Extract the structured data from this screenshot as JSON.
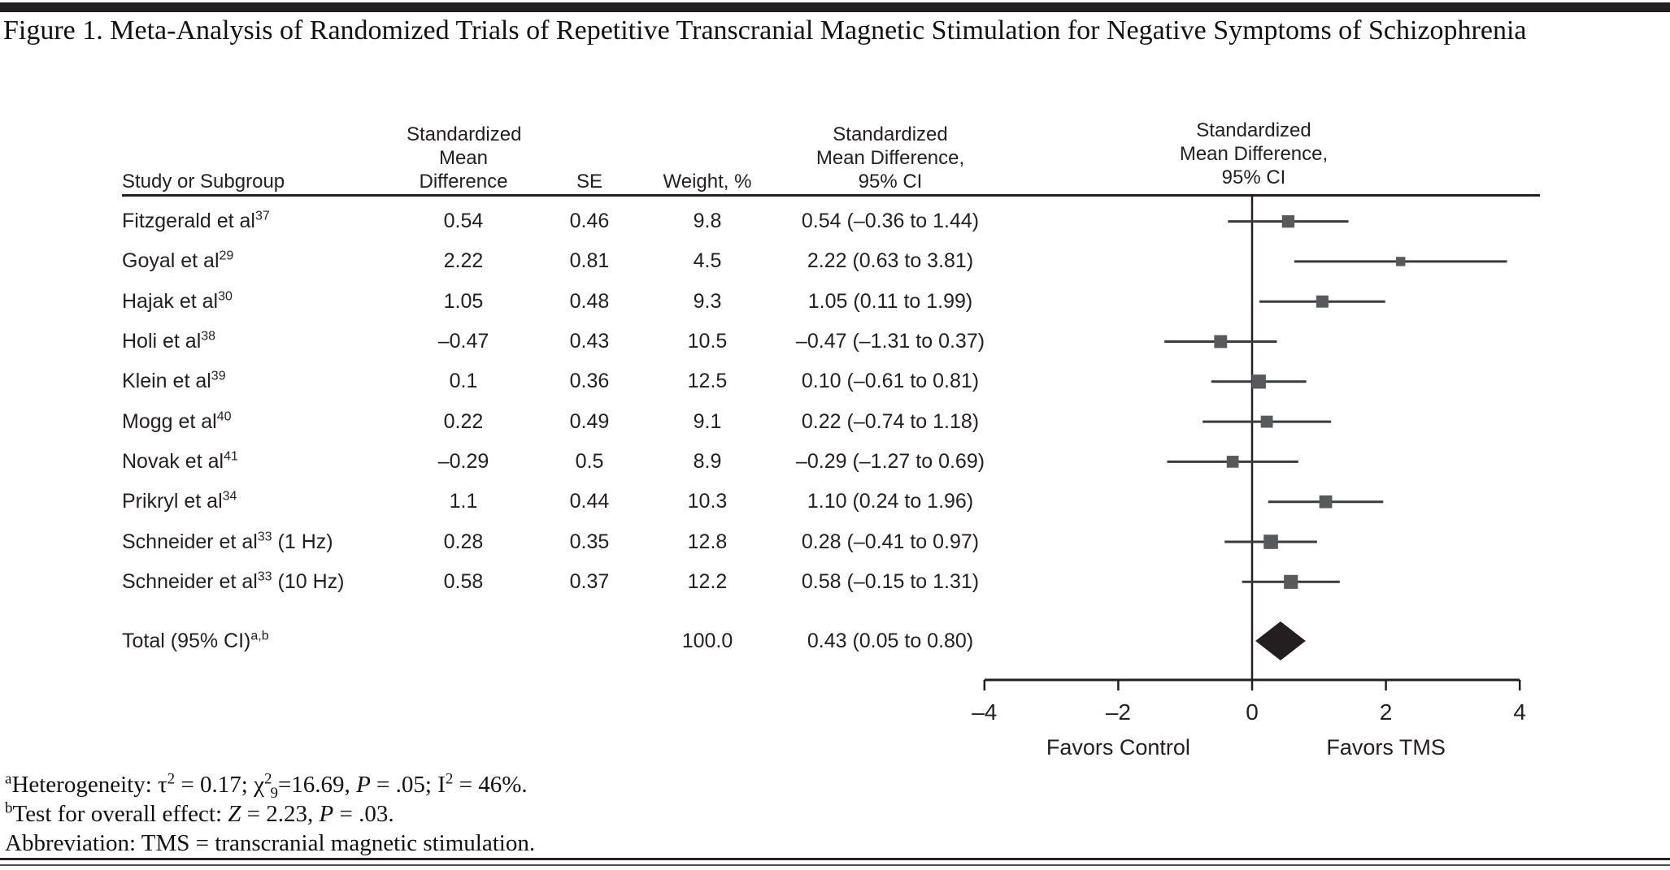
{
  "figure": {
    "title": "Figure 1. Meta-Analysis of Randomized Trials of Repetitive Transcranial Magnetic Stimulation for Negative Symptoms of Schizophrenia"
  },
  "table": {
    "headers": {
      "study": "Study or Subgroup",
      "smd": [
        "Standardized",
        "Mean",
        "Difference"
      ],
      "se": "SE",
      "weight": "Weight, %",
      "ci": [
        "Standardized",
        "Mean Difference,",
        "95% CI"
      ],
      "plot": [
        "Standardized",
        "Mean Difference,",
        "95% CI"
      ]
    },
    "rows": [
      {
        "study": "Fitzgerald et al",
        "ref": "37",
        "suffix": "",
        "smd": "0.54",
        "se": "0.46",
        "weight": "9.8",
        "ci": "0.54 (–0.36 to 1.44)"
      },
      {
        "study": "Goyal et al",
        "ref": "29",
        "suffix": "",
        "smd": "2.22",
        "se": "0.81",
        "weight": "4.5",
        "ci": "2.22 (0.63 to 3.81)"
      },
      {
        "study": "Hajak et al",
        "ref": "30",
        "suffix": "",
        "smd": "1.05",
        "se": "0.48",
        "weight": "9.3",
        "ci": "1.05 (0.11 to 1.99)"
      },
      {
        "study": "Holi et al",
        "ref": "38",
        "suffix": "",
        "smd": "–0.47",
        "se": "0.43",
        "weight": "10.5",
        "ci": "–0.47 (–1.31 to 0.37)"
      },
      {
        "study": "Klein et al",
        "ref": "39",
        "suffix": "",
        "smd": "0.1",
        "se": "0.36",
        "weight": "12.5",
        "ci": "0.10 (–0.61 to 0.81)"
      },
      {
        "study": "Mogg et al",
        "ref": "40",
        "suffix": "",
        "smd": "0.22",
        "se": "0.49",
        "weight": "9.1",
        "ci": "0.22 (–0.74 to 1.18)"
      },
      {
        "study": "Novak et al",
        "ref": "41",
        "suffix": "",
        "smd": "–0.29",
        "se": "0.5",
        "weight": "8.9",
        "ci": "–0.29 (–1.27 to 0.69)"
      },
      {
        "study": "Prikryl et al",
        "ref": "34",
        "suffix": "",
        "smd": "1.1",
        "se": "0.44",
        "weight": "10.3",
        "ci": "1.10 (0.24 to 1.96)"
      },
      {
        "study": "Schneider et al",
        "ref": "33",
        "suffix": " (1 Hz)",
        "smd": "0.28",
        "se": "0.35",
        "weight": "12.8",
        "ci": "0.28 (–0.41 to 0.97)"
      },
      {
        "study": "Schneider et al",
        "ref": "33",
        "suffix": " (10 Hz)",
        "smd": "0.58",
        "se": "0.37",
        "weight": "12.2",
        "ci": "0.58 (–0.15 to 1.31)"
      }
    ],
    "total": {
      "label": "Total (95% CI)",
      "ref": "a,b",
      "weight": "100.0",
      "ci": "0.43 (0.05 to 0.80)"
    }
  },
  "chart_data": {
    "type": "forest",
    "title": "Standardized Mean Difference, 95% CI",
    "xlim": [
      -4,
      4
    ],
    "ticks": [
      -4,
      -2,
      0,
      2,
      4
    ],
    "tick_labels": [
      "–4",
      "–2",
      "0",
      "2",
      "4"
    ],
    "favors_left": "Favors Control",
    "favors_right": "Favors TMS",
    "studies": [
      {
        "name": "Fitzgerald et al 37",
        "est": 0.54,
        "lo": -0.36,
        "hi": 1.44,
        "weight": 9.8
      },
      {
        "name": "Goyal et al 29",
        "est": 2.22,
        "lo": 0.63,
        "hi": 3.81,
        "weight": 4.5
      },
      {
        "name": "Hajak et al 30",
        "est": 1.05,
        "lo": 0.11,
        "hi": 1.99,
        "weight": 9.3
      },
      {
        "name": "Holi et al 38",
        "est": -0.47,
        "lo": -1.31,
        "hi": 0.37,
        "weight": 10.5
      },
      {
        "name": "Klein et al 39",
        "est": 0.1,
        "lo": -0.61,
        "hi": 0.81,
        "weight": 12.5
      },
      {
        "name": "Mogg et al 40",
        "est": 0.22,
        "lo": -0.74,
        "hi": 1.18,
        "weight": 9.1
      },
      {
        "name": "Novak et al 41",
        "est": -0.29,
        "lo": -1.27,
        "hi": 0.69,
        "weight": 8.9
      },
      {
        "name": "Prikryl et al 34",
        "est": 1.1,
        "lo": 0.24,
        "hi": 1.96,
        "weight": 10.3
      },
      {
        "name": "Schneider et al 33 (1 Hz)",
        "est": 0.28,
        "lo": -0.41,
        "hi": 0.97,
        "weight": 12.8
      },
      {
        "name": "Schneider et al 33 (10 Hz)",
        "est": 0.58,
        "lo": -0.15,
        "hi": 1.31,
        "weight": 12.2
      }
    ],
    "total": {
      "name": "Total (95% CI)",
      "est": 0.43,
      "lo": 0.05,
      "hi": 0.8,
      "weight": 100.0
    }
  },
  "footnotes": [
    [
      {
        "t": "sup",
        "s": "a"
      },
      {
        "t": "text",
        "s": "Heterogeneity: τ"
      },
      {
        "t": "sup",
        "s": "2"
      },
      {
        "t": "text",
        "s": " = 0.17; χ"
      },
      {
        "t": "sup",
        "s": "2"
      },
      {
        "t": "sub",
        "s": "9"
      },
      {
        "t": "text",
        "s": "=16.69, "
      },
      {
        "t": "i",
        "s": "P"
      },
      {
        "t": "text",
        "s": " = .05; I"
      },
      {
        "t": "sup",
        "s": "2"
      },
      {
        "t": "text",
        "s": " = 46%."
      }
    ],
    [
      {
        "t": "sup",
        "s": "b"
      },
      {
        "t": "text",
        "s": "Test for overall effect: "
      },
      {
        "t": "i",
        "s": "Z"
      },
      {
        "t": "text",
        "s": " = 2.23, "
      },
      {
        "t": "i",
        "s": "P"
      },
      {
        "t": "text",
        "s": " = .03."
      }
    ],
    [
      {
        "t": "text",
        "s": "Abbreviation: TMS = transcranial magnetic stimulation."
      }
    ]
  ],
  "colors": {
    "rule": "#231f20",
    "marker": "#58595b",
    "ci_line": "#3b3b3b",
    "diamond": "#231f20",
    "text": "#231f20"
  }
}
